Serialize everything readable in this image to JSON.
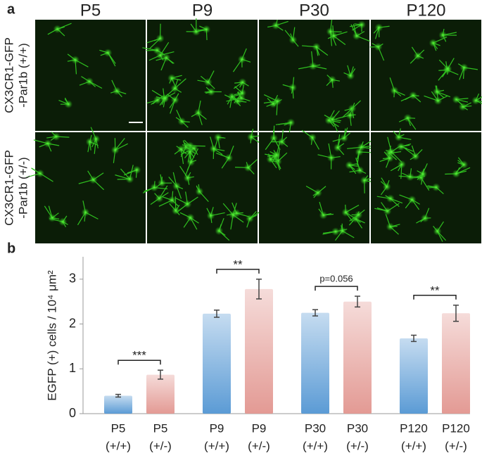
{
  "panel_a": {
    "label": "a",
    "columns": [
      "P5",
      "P9",
      "P30",
      "P120"
    ],
    "rows": [
      [
        "CX3CR1-GFP",
        "-Par1b (+/+)"
      ],
      [
        "CX3CR1-GFP",
        "-Par1b (+/-)"
      ]
    ]
  },
  "chart_data": {
    "type": "bar",
    "label": "b",
    "y_label": "EGFP (+) cells / 10⁴ μm²",
    "categories": [
      [
        "P5",
        "(+/+)"
      ],
      [
        "P5",
        "(+/-)"
      ],
      [
        "P9",
        "(+/+)"
      ],
      [
        "P9",
        "(+/-)"
      ],
      [
        "P30",
        "(+/+)"
      ],
      [
        "P30",
        "(+/-)"
      ],
      [
        "P120",
        "(+/+)"
      ],
      [
        "P120",
        "(+/-)"
      ]
    ],
    "values": [
      0.4,
      0.87,
      2.23,
      2.78,
      2.25,
      2.5,
      1.68,
      2.24
    ],
    "errors": [
      0.03,
      0.1,
      0.08,
      0.22,
      0.07,
      0.12,
      0.07,
      0.18
    ],
    "colors": [
      "#5b9bd5",
      "#e39a94",
      "#5b9bd5",
      "#e39a94",
      "#5b9bd5",
      "#e39a94",
      "#5b9bd5",
      "#e39a94"
    ],
    "significance": [
      "***",
      "**",
      "p=0.056",
      "**"
    ],
    "ylim": [
      0,
      3.5
    ],
    "yticks": [
      0,
      1,
      2,
      3
    ]
  }
}
